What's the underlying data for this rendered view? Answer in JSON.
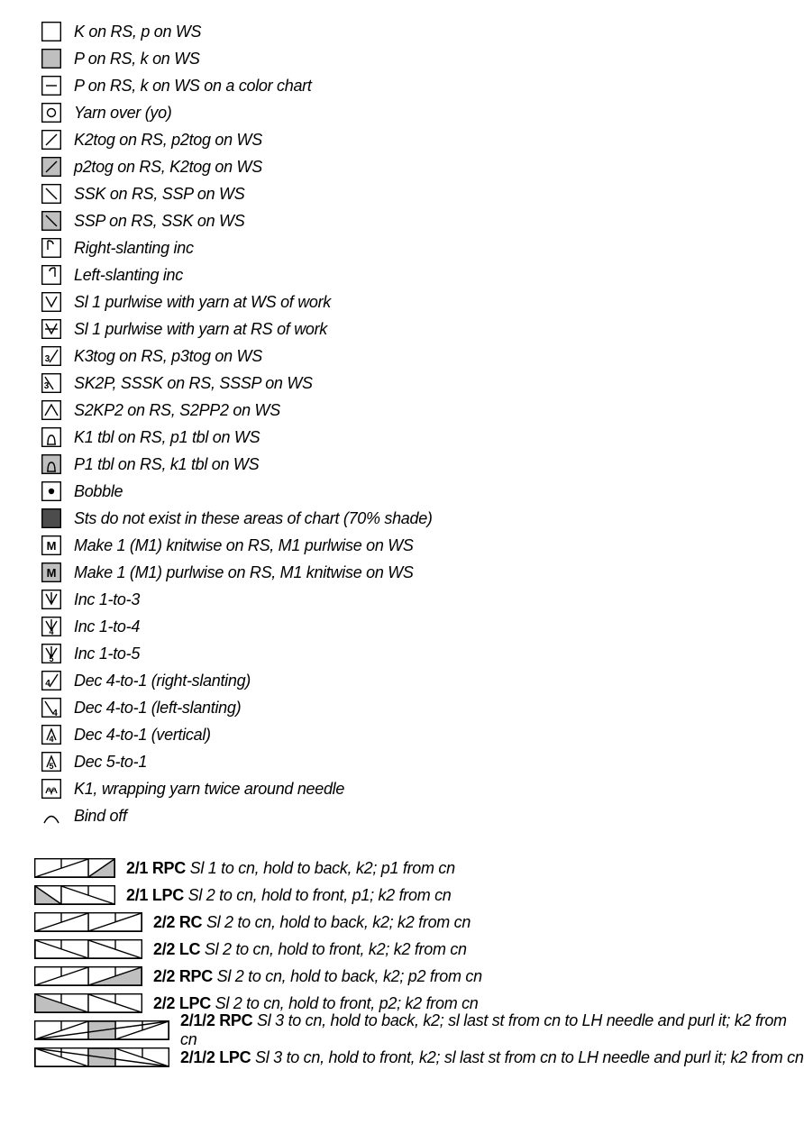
{
  "colors": {
    "stroke": "#000000",
    "white": "#ffffff",
    "grayFill": "#bfbfbf",
    "darkGray": "#4c4c4c"
  },
  "legend": [
    {
      "icon": "sq-white",
      "label": "K on RS, p on WS"
    },
    {
      "icon": "sq-gray",
      "label": "P on RS, k on WS"
    },
    {
      "icon": "dash",
      "label": "P on RS, k on WS on a color chart"
    },
    {
      "icon": "yo",
      "label": "Yarn over (yo)"
    },
    {
      "icon": "slash-r",
      "label": "K2tog on RS, p2tog on WS"
    },
    {
      "icon": "slash-r-gray",
      "label": "p2tog on RS, K2tog on WS"
    },
    {
      "icon": "slash-l",
      "label": "SSK on RS, SSP on WS"
    },
    {
      "icon": "slash-l-gray",
      "label": "SSP on RS, SSK on WS"
    },
    {
      "icon": "inc-r",
      "label": "Right-slanting inc"
    },
    {
      "icon": "inc-l",
      "label": "Left-slanting inc"
    },
    {
      "icon": "v",
      "label": "Sl 1 purlwise with yarn at WS of work"
    },
    {
      "icon": "v-bar",
      "label": "Sl 1 purlwise with yarn at RS of work"
    },
    {
      "icon": "slash-r3",
      "label": "K3tog on RS, p3tog on WS"
    },
    {
      "icon": "slash-l3",
      "label": "SK2P, SSSK on RS, SSSP on WS"
    },
    {
      "icon": "caret",
      "label": "S2KP2 on RS, S2PP2 on WS"
    },
    {
      "icon": "tbl",
      "label": "K1 tbl on RS, p1 tbl on WS"
    },
    {
      "icon": "tbl-gray",
      "label": "P1 tbl on RS, k1 tbl on WS"
    },
    {
      "icon": "bobble",
      "label": "Bobble"
    },
    {
      "icon": "sq-dark",
      "label": "Sts do not exist in these areas of chart (70% shade)"
    },
    {
      "icon": "m-white",
      "label": "Make 1 (M1) knitwise on RS, M1 purlwise on WS"
    },
    {
      "icon": "m-gray",
      "label": "Make 1 (M1) purlwise on RS, M1 knitwise on WS"
    },
    {
      "icon": "v-inc3",
      "label": "Inc 1-to-3"
    },
    {
      "icon": "v-inc4",
      "label": "Inc 1-to-4"
    },
    {
      "icon": "v-inc5",
      "label": "Inc 1-to-5"
    },
    {
      "icon": "dec4-r",
      "label": "Dec 4-to-1 (right-slanting)"
    },
    {
      "icon": "dec4-l",
      "label": "Dec 4-to-1 (left-slanting)"
    },
    {
      "icon": "dec4-v",
      "label": "Dec 4-to-1 (vertical)"
    },
    {
      "icon": "dec5",
      "label": "Dec 5-to-1"
    },
    {
      "icon": "wrap2",
      "label": "K1, wrapping yarn twice around needle"
    },
    {
      "icon": "bindoff",
      "label": "Bind off"
    }
  ],
  "cables": [
    {
      "icon": "c-2-1-rpc",
      "w": 3,
      "code": "2/1 RPC",
      "desc": "Sl 1 to cn, hold to back, k2; p1 from cn"
    },
    {
      "icon": "c-2-1-lpc",
      "w": 3,
      "code": "2/1 LPC",
      "desc": "Sl 2 to cn, hold to front, p1; k2 from cn"
    },
    {
      "icon": "c-2-2-rc",
      "w": 4,
      "code": "2/2 RC",
      "desc": "Sl 2 to cn, hold to back, k2; k2 from cn"
    },
    {
      "icon": "c-2-2-lc",
      "w": 4,
      "code": "2/2 LC",
      "desc": "Sl 2 to cn, hold to front, k2; k2 from cn"
    },
    {
      "icon": "c-2-2-rpc",
      "w": 4,
      "code": "2/2 RPC",
      "desc": "Sl 2 to cn, hold to back, k2; p2 from cn"
    },
    {
      "icon": "c-2-2-lpc",
      "w": 4,
      "code": "2/2 LPC",
      "desc": "Sl 2 to cn, hold to front, p2; k2 from cn"
    },
    {
      "icon": "c-2-1-2-rpc",
      "w": 5,
      "code": "2/1/2 RPC",
      "desc": "Sl 3 to cn, hold to back, k2; sl last st from cn to LH needle and purl it; k2 from cn"
    },
    {
      "icon": "c-2-1-2-lpc",
      "w": 5,
      "code": "2/1/2 LPC",
      "desc": "Sl 3 to cn, hold to front, k2; sl last st from cn to LH needle and purl it; k2 from cn"
    }
  ]
}
